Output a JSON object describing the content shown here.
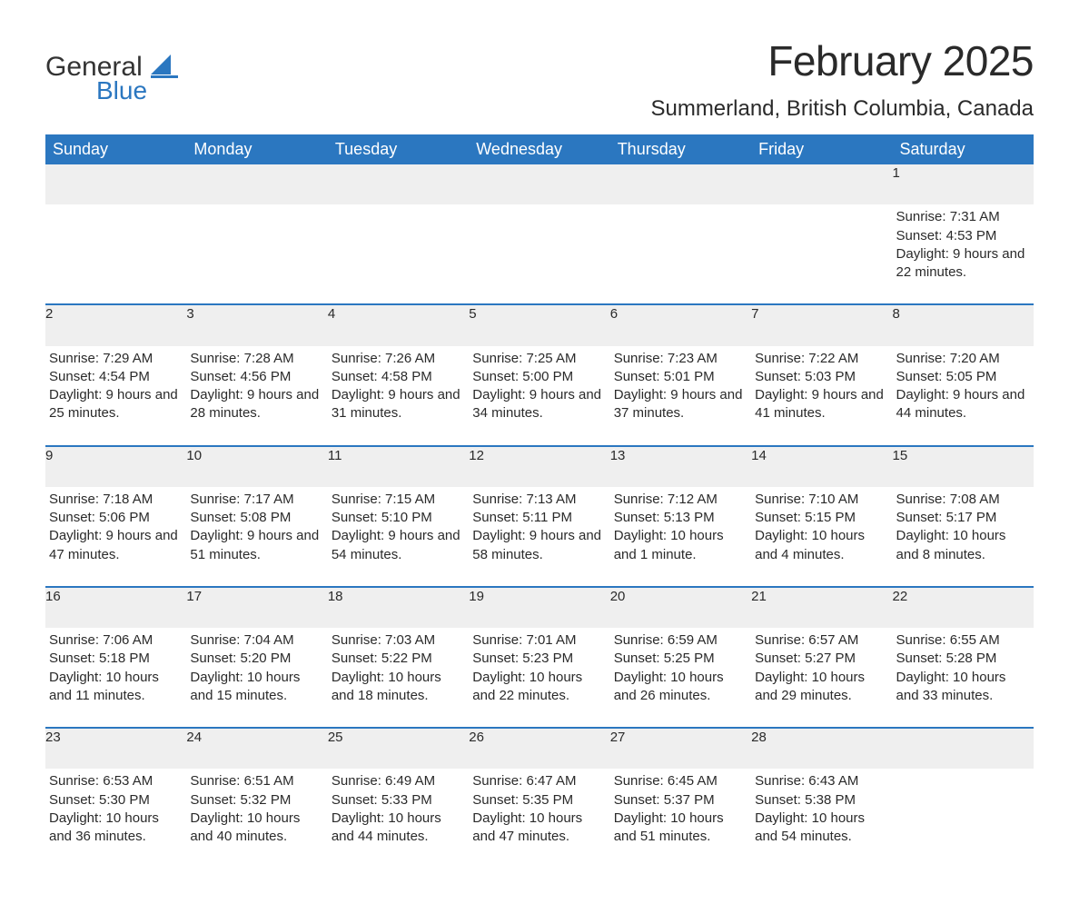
{
  "logo": {
    "word1": "General",
    "word2": "Blue",
    "accent_color": "#2b77c0"
  },
  "title": "February 2025",
  "location": "Summerland, British Columbia, Canada",
  "colors": {
    "header_bg": "#2b77c0",
    "header_fg": "#ffffff",
    "row_divider": "#2b77c0",
    "daynum_bg": "#efefef",
    "text": "#2a2a2a"
  },
  "day_headers": [
    "Sunday",
    "Monday",
    "Tuesday",
    "Wednesday",
    "Thursday",
    "Friday",
    "Saturday"
  ],
  "weeks": [
    [
      null,
      null,
      null,
      null,
      null,
      null,
      {
        "d": "1",
        "sunrise": "7:31 AM",
        "sunset": "4:53 PM",
        "daylight": "9 hours and 22 minutes."
      }
    ],
    [
      {
        "d": "2",
        "sunrise": "7:29 AM",
        "sunset": "4:54 PM",
        "daylight": "9 hours and 25 minutes."
      },
      {
        "d": "3",
        "sunrise": "7:28 AM",
        "sunset": "4:56 PM",
        "daylight": "9 hours and 28 minutes."
      },
      {
        "d": "4",
        "sunrise": "7:26 AM",
        "sunset": "4:58 PM",
        "daylight": "9 hours and 31 minutes."
      },
      {
        "d": "5",
        "sunrise": "7:25 AM",
        "sunset": "5:00 PM",
        "daylight": "9 hours and 34 minutes."
      },
      {
        "d": "6",
        "sunrise": "7:23 AM",
        "sunset": "5:01 PM",
        "daylight": "9 hours and 37 minutes."
      },
      {
        "d": "7",
        "sunrise": "7:22 AM",
        "sunset": "5:03 PM",
        "daylight": "9 hours and 41 minutes."
      },
      {
        "d": "8",
        "sunrise": "7:20 AM",
        "sunset": "5:05 PM",
        "daylight": "9 hours and 44 minutes."
      }
    ],
    [
      {
        "d": "9",
        "sunrise": "7:18 AM",
        "sunset": "5:06 PM",
        "daylight": "9 hours and 47 minutes."
      },
      {
        "d": "10",
        "sunrise": "7:17 AM",
        "sunset": "5:08 PM",
        "daylight": "9 hours and 51 minutes."
      },
      {
        "d": "11",
        "sunrise": "7:15 AM",
        "sunset": "5:10 PM",
        "daylight": "9 hours and 54 minutes."
      },
      {
        "d": "12",
        "sunrise": "7:13 AM",
        "sunset": "5:11 PM",
        "daylight": "9 hours and 58 minutes."
      },
      {
        "d": "13",
        "sunrise": "7:12 AM",
        "sunset": "5:13 PM",
        "daylight": "10 hours and 1 minute."
      },
      {
        "d": "14",
        "sunrise": "7:10 AM",
        "sunset": "5:15 PM",
        "daylight": "10 hours and 4 minutes."
      },
      {
        "d": "15",
        "sunrise": "7:08 AM",
        "sunset": "5:17 PM",
        "daylight": "10 hours and 8 minutes."
      }
    ],
    [
      {
        "d": "16",
        "sunrise": "7:06 AM",
        "sunset": "5:18 PM",
        "daylight": "10 hours and 11 minutes."
      },
      {
        "d": "17",
        "sunrise": "7:04 AM",
        "sunset": "5:20 PM",
        "daylight": "10 hours and 15 minutes."
      },
      {
        "d": "18",
        "sunrise": "7:03 AM",
        "sunset": "5:22 PM",
        "daylight": "10 hours and 18 minutes."
      },
      {
        "d": "19",
        "sunrise": "7:01 AM",
        "sunset": "5:23 PM",
        "daylight": "10 hours and 22 minutes."
      },
      {
        "d": "20",
        "sunrise": "6:59 AM",
        "sunset": "5:25 PM",
        "daylight": "10 hours and 26 minutes."
      },
      {
        "d": "21",
        "sunrise": "6:57 AM",
        "sunset": "5:27 PM",
        "daylight": "10 hours and 29 minutes."
      },
      {
        "d": "22",
        "sunrise": "6:55 AM",
        "sunset": "5:28 PM",
        "daylight": "10 hours and 33 minutes."
      }
    ],
    [
      {
        "d": "23",
        "sunrise": "6:53 AM",
        "sunset": "5:30 PM",
        "daylight": "10 hours and 36 minutes."
      },
      {
        "d": "24",
        "sunrise": "6:51 AM",
        "sunset": "5:32 PM",
        "daylight": "10 hours and 40 minutes."
      },
      {
        "d": "25",
        "sunrise": "6:49 AM",
        "sunset": "5:33 PM",
        "daylight": "10 hours and 44 minutes."
      },
      {
        "d": "26",
        "sunrise": "6:47 AM",
        "sunset": "5:35 PM",
        "daylight": "10 hours and 47 minutes."
      },
      {
        "d": "27",
        "sunrise": "6:45 AM",
        "sunset": "5:37 PM",
        "daylight": "10 hours and 51 minutes."
      },
      {
        "d": "28",
        "sunrise": "6:43 AM",
        "sunset": "5:38 PM",
        "daylight": "10 hours and 54 minutes."
      },
      null
    ]
  ],
  "labels": {
    "sunrise": "Sunrise:",
    "sunset": "Sunset:",
    "daylight": "Daylight:"
  }
}
